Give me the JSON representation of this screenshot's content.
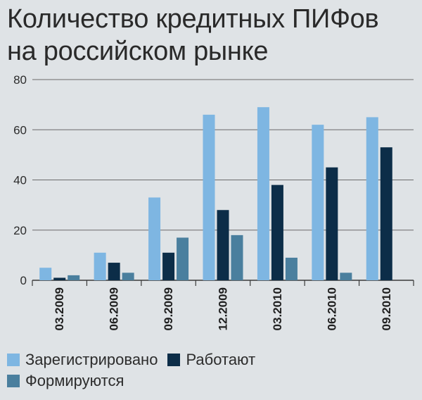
{
  "title_line1": "Количество кредитных ПИФов",
  "title_line2": "на российском рынке",
  "chart_data": {
    "type": "bar",
    "categories": [
      "03.2009",
      "06.2009",
      "09.2009",
      "12.2009",
      "03.2010",
      "06.2010",
      "09.2010"
    ],
    "series": [
      {
        "name": "Зарегистрировано",
        "color": "#7eb6e2",
        "values": [
          5,
          11,
          33,
          66,
          69,
          62,
          65
        ]
      },
      {
        "name": "Работают",
        "color": "#0c2d48",
        "values": [
          1,
          7,
          11,
          28,
          38,
          45,
          53
        ]
      },
      {
        "name": "Формируются",
        "color": "#4a7f9e",
        "values": [
          2,
          3,
          17,
          18,
          9,
          3,
          null
        ]
      }
    ],
    "yticks": [
      0,
      20,
      40,
      60,
      80
    ],
    "ylim": [
      0,
      80
    ],
    "grid": true,
    "legend_position": "bottom"
  }
}
